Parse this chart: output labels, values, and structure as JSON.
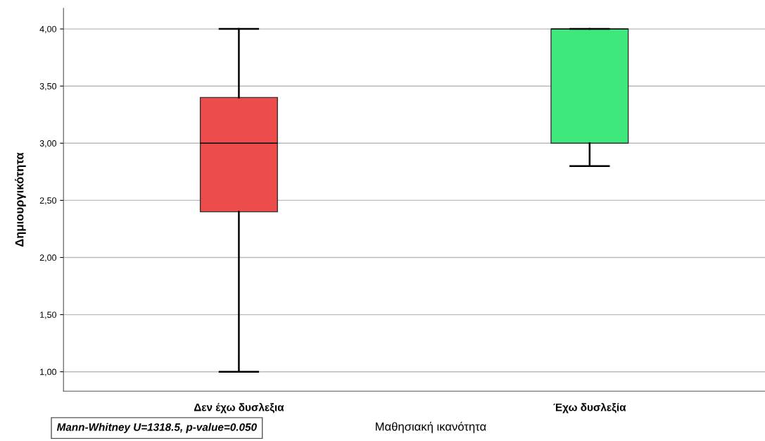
{
  "chart_data": {
    "type": "box",
    "xlabel": "Μαθησιακή ικανότητα",
    "ylabel": "Δημιουργικότητα",
    "categories": [
      "Δεν έχω δυσλεξια",
      "Έχω δυσλεξία"
    ],
    "boxes": [
      {
        "low": 1.0,
        "q1": 2.4,
        "median": 3.0,
        "q3": 3.4,
        "high": 4.0
      },
      {
        "low": 2.8,
        "q1": 3.0,
        "median": 4.0,
        "q3": 4.0,
        "high": 4.0
      }
    ],
    "colors": [
      "#ed4c4c",
      "#3fe87c"
    ],
    "ylim": [
      0.83,
      4.18
    ],
    "yticks": [
      {
        "value": 1,
        "label": "1,00"
      },
      {
        "value": 1.5,
        "label": "1,50"
      },
      {
        "value": 2,
        "label": "2,00"
      },
      {
        "value": 2.5,
        "label": "2,50"
      },
      {
        "value": 3,
        "label": "3,00"
      },
      {
        "value": 3.5,
        "label": "3,50"
      },
      {
        "value": 4,
        "label": "4,00"
      }
    ],
    "grid": "y",
    "annotations": [
      "Mann-Whitney U=1318.5, p-value=0.050"
    ]
  }
}
